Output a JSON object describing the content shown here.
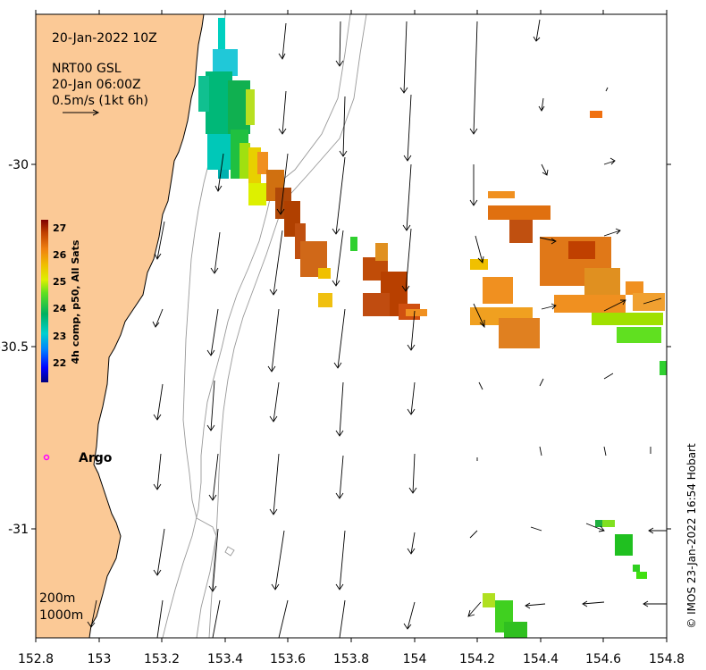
{
  "map": {
    "datetime": "20-Jan-2022 10Z",
    "current_source": "NRT00 GSL",
    "current_time": "20-Jan 06:00Z",
    "scale_label": "0.5m/s (1kt 6h)",
    "credit": "© IMOS 23-Jan-2022 16:54 Hobart",
    "argo_label": "Argo",
    "contour_labels": [
      "200m",
      "1000m"
    ],
    "lon_ticks": [
      "152.8",
      "153",
      "153.2",
      "153.4",
      "153.6",
      "153.8",
      "154",
      "154.2",
      "154.4",
      "154.6",
      "154.8"
    ],
    "lat_ticks": [
      "-30",
      "-30.5",
      "-31"
    ]
  },
  "colorbar": {
    "label": "4h comp, p50, All Sats",
    "ticks": [
      "27",
      "26",
      "25",
      "24",
      "23",
      "22"
    ],
    "colors": [
      "#00007f",
      "#0000ff",
      "#0080ff",
      "#00d0d0",
      "#00c070",
      "#30d030",
      "#ddf000",
      "#f0d000",
      "#f09010",
      "#d06010",
      "#a02000",
      "#7f0000"
    ]
  },
  "colors": {
    "land": "#fbc996",
    "argo_marker": "#ff00ff"
  }
}
